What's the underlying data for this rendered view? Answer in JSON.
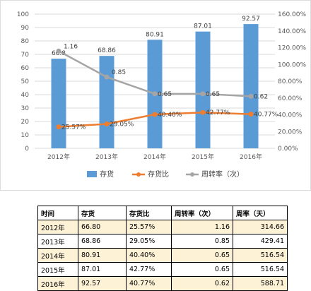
{
  "chart_data": {
    "type": "bar+line",
    "categories": [
      "2012年",
      "2013年",
      "2014年",
      "2015年",
      "2016年"
    ],
    "series": [
      {
        "name": "存货",
        "type": "bar",
        "axis": "left",
        "values": [
          66.8,
          68.86,
          80.91,
          87.01,
          92.57
        ],
        "labels": [
          "66.8",
          "68.86",
          "80.91",
          "87.01",
          "92.57"
        ],
        "color": "#5b9bd5"
      },
      {
        "name": "存货比",
        "type": "line",
        "axis": "right",
        "values": [
          25.57,
          29.05,
          40.4,
          42.77,
          40.77
        ],
        "labels": [
          "25.57%",
          "29.05%",
          "40.40%",
          "42.77%",
          "40.77%"
        ],
        "color": "#ed7d31"
      },
      {
        "name": "周转率（次）",
        "type": "line",
        "axis": "right",
        "values": [
          1.16,
          0.85,
          0.65,
          0.65,
          0.62
        ],
        "labels": [
          "1.16",
          "0.85",
          "0.65",
          "0.65",
          "0.62"
        ],
        "color": "#a5a5a5"
      }
    ],
    "left_axis": {
      "min": 0,
      "max": 100,
      "ticks": [
        "0",
        "10",
        "20",
        "30",
        "40",
        "50",
        "60",
        "70",
        "80",
        "90",
        "100"
      ]
    },
    "right_axis": {
      "min": 0,
      "max": 160,
      "ticks": [
        "0.00%",
        "20.00%",
        "40.00%",
        "60.00%",
        "80.00%",
        "100.00%",
        "120.00%",
        "140.00%",
        "160.00%"
      ]
    },
    "grid": true,
    "legend_position": "bottom"
  },
  "table": {
    "headers": [
      "时间",
      "存货",
      "存货比",
      "周转率（次）",
      "周率（天）"
    ],
    "rows": [
      [
        "2012年",
        "66.80",
        "25.57%",
        "1.16",
        "314.66"
      ],
      [
        "2013年",
        "68.86",
        "29.05%",
        "0.85",
        "429.41"
      ],
      [
        "2014年",
        "80.91",
        "40.40%",
        "0.65",
        "516.54"
      ],
      [
        "2015年",
        "87.01",
        "42.77%",
        "0.65",
        "516.54"
      ],
      [
        "2016年",
        "92.57",
        "40.77%",
        "0.62",
        "588.71"
      ]
    ]
  }
}
